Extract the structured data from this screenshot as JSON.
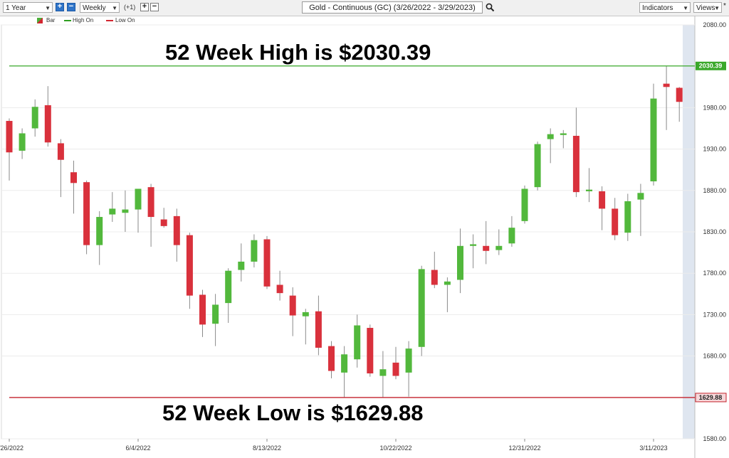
{
  "toolbar": {
    "period": "1 Year",
    "interval": "Weekly",
    "offset": "(+1)",
    "title": "Gold - Continuous (GC) (3/26/2022 - 3/29/2023)",
    "indicators": "Indicators",
    "views": "Views",
    "icons": [
      "plus-icon",
      "minus-icon",
      "search-icon",
      "chevron-down-icon"
    ]
  },
  "legend": [
    {
      "label": "Bar",
      "color": "#4caf3a"
    },
    {
      "label": "High On",
      "color": "#2e9e1f"
    },
    {
      "label": "Low On",
      "color": "#d22630"
    }
  ],
  "annotations": {
    "high_text": "52 Week High is $2030.39",
    "low_text": "52 Week Low is $1629.88"
  },
  "colors": {
    "up": "#52b83c",
    "down": "#d9313c",
    "high_line": "#3aa82a",
    "low_line": "#c4222c",
    "grid": "#ececec"
  },
  "chart_data": {
    "type": "candlestick",
    "title": "Gold - Continuous (GC) (3/26/2022 - 3/29/2023)",
    "ylim": [
      1580,
      2080
    ],
    "yticks": [
      "2080.00",
      "1980.00",
      "1930.00",
      "1880.00",
      "1830.00",
      "1780.00",
      "1730.00",
      "1680.00",
      "1580.00"
    ],
    "yticks_values": [
      2080,
      1980,
      1930,
      1880,
      1830,
      1780,
      1730,
      1680,
      1580
    ],
    "xticks": [
      {
        "label": "3/26/2022",
        "week": 0
      },
      {
        "label": "6/4/2022",
        "week": 10
      },
      {
        "label": "8/13/2022",
        "week": 20
      },
      {
        "label": "10/22/2022",
        "week": 30
      },
      {
        "label": "12/31/2022",
        "week": 40
      },
      {
        "label": "3/11/2023",
        "week": 50
      }
    ],
    "high_line": {
      "value": 2030.39,
      "label": "2030.39"
    },
    "low_line": {
      "value": 1629.88,
      "label": "1629.88"
    },
    "candles": [
      {
        "o": 1964,
        "h": 1967,
        "l": 1892,
        "c": 1926
      },
      {
        "o": 1928,
        "h": 1955,
        "l": 1918,
        "c": 1949
      },
      {
        "o": 1955,
        "h": 1990,
        "l": 1945,
        "c": 1981
      },
      {
        "o": 1983,
        "h": 2006,
        "l": 1933,
        "c": 1938
      },
      {
        "o": 1937,
        "h": 1942,
        "l": 1872,
        "c": 1917
      },
      {
        "o": 1902,
        "h": 1916,
        "l": 1852,
        "c": 1889
      },
      {
        "o": 1890,
        "h": 1892,
        "l": 1803,
        "c": 1814
      },
      {
        "o": 1814,
        "h": 1855,
        "l": 1790,
        "c": 1848
      },
      {
        "o": 1851,
        "h": 1878,
        "l": 1842,
        "c": 1858
      },
      {
        "o": 1853,
        "h": 1880,
        "l": 1830,
        "c": 1857
      },
      {
        "o": 1857,
        "h": 1882,
        "l": 1829,
        "c": 1882
      },
      {
        "o": 1884,
        "h": 1888,
        "l": 1812,
        "c": 1848
      },
      {
        "o": 1845,
        "h": 1859,
        "l": 1835,
        "c": 1837
      },
      {
        "o": 1849,
        "h": 1858,
        "l": 1794,
        "c": 1814
      },
      {
        "o": 1826,
        "h": 1829,
        "l": 1737,
        "c": 1753
      },
      {
        "o": 1754,
        "h": 1760,
        "l": 1703,
        "c": 1718
      },
      {
        "o": 1719,
        "h": 1755,
        "l": 1692,
        "c": 1742
      },
      {
        "o": 1744,
        "h": 1786,
        "l": 1720,
        "c": 1783
      },
      {
        "o": 1784,
        "h": 1816,
        "l": 1770,
        "c": 1794
      },
      {
        "o": 1794,
        "h": 1827,
        "l": 1787,
        "c": 1820
      },
      {
        "o": 1821,
        "h": 1825,
        "l": 1761,
        "c": 1764
      },
      {
        "o": 1766,
        "h": 1783,
        "l": 1747,
        "c": 1756
      },
      {
        "o": 1753,
        "h": 1763,
        "l": 1704,
        "c": 1729
      },
      {
        "o": 1728,
        "h": 1737,
        "l": 1694,
        "c": 1733
      },
      {
        "o": 1734,
        "h": 1753,
        "l": 1681,
        "c": 1690
      },
      {
        "o": 1692,
        "h": 1698,
        "l": 1653,
        "c": 1662
      },
      {
        "o": 1660,
        "h": 1692,
        "l": 1629.88,
        "c": 1682
      },
      {
        "o": 1676,
        "h": 1730,
        "l": 1666,
        "c": 1717
      },
      {
        "o": 1714,
        "h": 1718,
        "l": 1655,
        "c": 1659
      },
      {
        "o": 1656,
        "h": 1686,
        "l": 1630,
        "c": 1664
      },
      {
        "o": 1672,
        "h": 1691,
        "l": 1652,
        "c": 1656
      },
      {
        "o": 1660,
        "h": 1698,
        "l": 1631,
        "c": 1689
      },
      {
        "o": 1691,
        "h": 1789,
        "l": 1680,
        "c": 1785
      },
      {
        "o": 1784,
        "h": 1806,
        "l": 1762,
        "c": 1766
      },
      {
        "o": 1766,
        "h": 1775,
        "l": 1733,
        "c": 1770
      },
      {
        "o": 1772,
        "h": 1834,
        "l": 1756,
        "c": 1813
      },
      {
        "o": 1813,
        "h": 1827,
        "l": 1786,
        "c": 1815
      },
      {
        "o": 1813,
        "h": 1843,
        "l": 1791,
        "c": 1807
      },
      {
        "o": 1808,
        "h": 1833,
        "l": 1802,
        "c": 1813
      },
      {
        "o": 1816,
        "h": 1849,
        "l": 1812,
        "c": 1835
      },
      {
        "o": 1843,
        "h": 1886,
        "l": 1840,
        "c": 1882
      },
      {
        "o": 1884,
        "h": 1939,
        "l": 1880,
        "c": 1936
      },
      {
        "o": 1942,
        "h": 1955,
        "l": 1913,
        "c": 1948
      },
      {
        "o": 1947,
        "h": 1953,
        "l": 1931,
        "c": 1949
      },
      {
        "o": 1946,
        "h": 1980,
        "l": 1872,
        "c": 1878
      },
      {
        "o": 1879,
        "h": 1907,
        "l": 1866,
        "c": 1881
      },
      {
        "o": 1879,
        "h": 1885,
        "l": 1832,
        "c": 1858
      },
      {
        "o": 1858,
        "h": 1871,
        "l": 1820,
        "c": 1826
      },
      {
        "o": 1829,
        "h": 1876,
        "l": 1819,
        "c": 1867
      },
      {
        "o": 1869,
        "h": 1888,
        "l": 1825,
        "c": 1877
      },
      {
        "o": 1891,
        "h": 2009,
        "l": 1886,
        "c": 1991
      },
      {
        "o": 2009,
        "h": 2030.39,
        "l": 1953,
        "c": 2005
      },
      {
        "o": 2004,
        "h": 2005,
        "l": 1963,
        "c": 1987
      }
    ]
  }
}
